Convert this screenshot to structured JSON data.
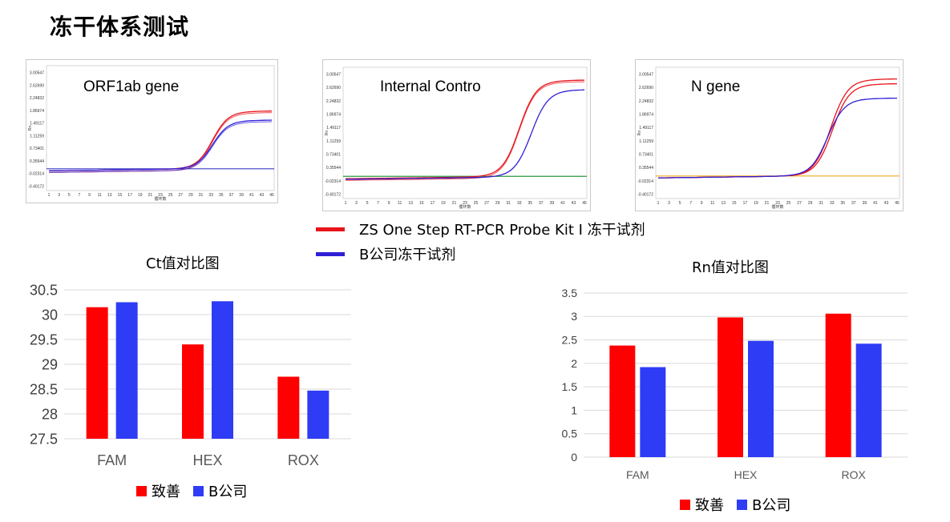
{
  "title": "冻干体系测试",
  "amplification_panels": [
    {
      "label": "ORF1ab gene",
      "y_ticks": [
        "3.00547",
        "2.62690",
        "2.24832",
        "1.86974",
        "1.49117",
        "1.11259",
        "0.73401",
        "0.35544",
        "-0.02314",
        "-0.40172"
      ],
      "x_ticks": [
        "1",
        "3",
        "5",
        "7",
        "9",
        "11",
        "13",
        "15",
        "17",
        "19",
        "21",
        "23",
        "25",
        "27",
        "29",
        "31",
        "33",
        "35",
        "37",
        "39",
        "41",
        "43",
        "45"
      ],
      "x_label": "循环数",
      "y_label": "Rn"
    },
    {
      "label": "Internal Contro",
      "y_ticks": [
        "3.00547",
        "2.62690",
        "2.24832",
        "1.86974",
        "1.49117",
        "1.11259",
        "0.73401",
        "0.35544",
        "-0.02314",
        "-0.40172"
      ],
      "x_ticks": [
        "1",
        "3",
        "5",
        "7",
        "9",
        "11",
        "13",
        "15",
        "17",
        "19",
        "21",
        "23",
        "25",
        "27",
        "29",
        "31",
        "33",
        "35",
        "37",
        "39",
        "41",
        "43",
        "45"
      ],
      "x_label": "循环数",
      "y_label": "Rn"
    },
    {
      "label": "N gene",
      "y_ticks": [
        "3.00547",
        "2.62690",
        "2.24832",
        "1.86974",
        "1.49117",
        "1.11259",
        "0.73401",
        "0.35544",
        "-0.02314",
        "-0.40172"
      ],
      "x_ticks": [
        "1",
        "3",
        "5",
        "7",
        "9",
        "11",
        "13",
        "15",
        "17",
        "19",
        "21",
        "23",
        "25",
        "27",
        "29",
        "31",
        "33",
        "35",
        "37",
        "39",
        "41",
        "43",
        "45"
      ],
      "x_label": "循环数",
      "y_label": "Rn"
    }
  ],
  "line_legend": [
    {
      "label": "ZS One Step RT-PCR Probe Kit Ⅰ 冻干试剂",
      "color": "#e8141b"
    },
    {
      "label": "B公司冻干试剂",
      "color": "#2f1fd6"
    }
  ],
  "chart_data": [
    {
      "type": "bar",
      "title": "Ct值对比图",
      "categories": [
        "FAM",
        "HEX",
        "ROX"
      ],
      "series": [
        {
          "name": "致善",
          "color": "#ff0000",
          "values": [
            30.15,
            29.4,
            28.75
          ]
        },
        {
          "name": "B公司",
          "color": "#2e3cf5",
          "values": [
            30.25,
            30.27,
            28.47
          ]
        }
      ],
      "ylim": [
        27.5,
        30.5
      ],
      "y_ticks": [
        "30.5",
        "30",
        "29.5",
        "29",
        "28.5",
        "28",
        "27.5"
      ],
      "grid": true,
      "legend_position": "bottom"
    },
    {
      "type": "bar",
      "title": "Rn值对比图",
      "categories": [
        "FAM",
        "HEX",
        "ROX"
      ],
      "series": [
        {
          "name": "致善",
          "color": "#ff0000",
          "values": [
            2.38,
            2.98,
            3.06
          ]
        },
        {
          "name": "B公司",
          "color": "#2e3cf5",
          "values": [
            1.92,
            2.48,
            2.42
          ]
        }
      ],
      "ylim": [
        0,
        3.5
      ],
      "y_ticks": [
        "3.5",
        "3",
        "2.5",
        "2",
        "1.5",
        "1",
        "0.5",
        "0"
      ],
      "grid": true,
      "legend_position": "bottom"
    }
  ]
}
